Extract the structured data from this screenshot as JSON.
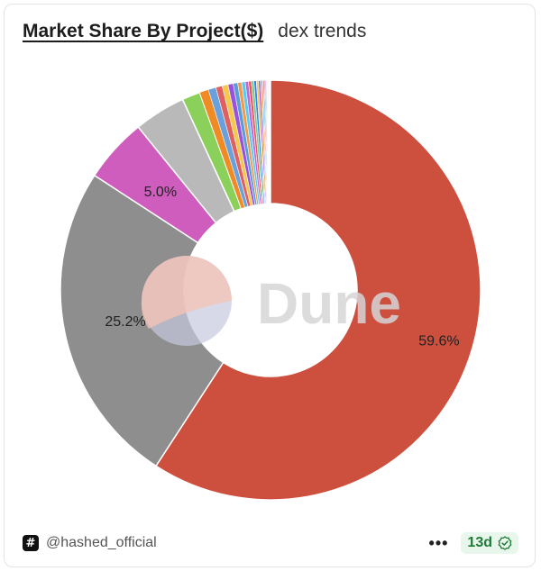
{
  "header": {
    "title": "Market Share By Project($)",
    "subtitle": "dex trends"
  },
  "watermark": {
    "text": "Dune"
  },
  "footer": {
    "author": "@hashed_official",
    "more_label": "•••",
    "age": "13d"
  },
  "colors": {
    "accent_green": "#1f7a37",
    "watermark_peach": "#f6c3b4",
    "watermark_lavender": "#c7c9de"
  },
  "chart_data": {
    "type": "pie",
    "donut": true,
    "title": "",
    "slice_values": [
      59.6,
      25.2,
      5.0,
      4.0,
      1.4,
      0.7,
      0.6,
      0.5,
      0.45,
      0.4,
      0.35,
      0.3,
      0.28,
      0.25,
      0.22,
      0.2,
      0.18,
      0.16,
      0.14,
      0.12,
      0.1,
      0.09,
      0.08,
      0.07,
      0.06,
      0.05,
      0.05,
      0.04,
      0.04,
      0.03,
      0.03,
      0.03
    ],
    "slice_colors": [
      "#cd4f3e",
      "#8e8e8e",
      "#cf5dbd",
      "#b9b9b9",
      "#8bd05a",
      "#f08a24",
      "#6aa0dc",
      "#e06060",
      "#f2c94c",
      "#9b51e0",
      "#5a9ed6",
      "#f2994a",
      "#56ccf2",
      "#bb6bd9",
      "#eb5757",
      "#6fcf97",
      "#2f80ed",
      "#f2c94c",
      "#9b51e0",
      "#f08a24",
      "#56ccf2",
      "#e06060",
      "#6aa0dc",
      "#bb6bd9",
      "#8bd05a",
      "#f2994a",
      "#2f80ed",
      "#eb5757",
      "#6fcf97",
      "#f2c94c",
      "#9b51e0",
      "#56ccf2"
    ],
    "labels": [
      "59.6%",
      "25.2%",
      "5.0%"
    ]
  }
}
